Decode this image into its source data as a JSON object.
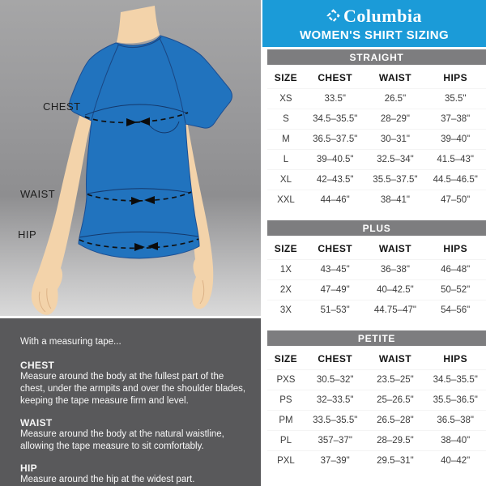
{
  "colors": {
    "header_blue": "#1B9BD8",
    "band_gray": "#7D7D7F",
    "instructions_bg": "#59595B",
    "shirt_blue": "#2173BE",
    "shirt_outline": "#1B4E93",
    "skin": "#F3D3AA",
    "figure_bg_top": "#A6A6A7",
    "figure_bg_bottom": "#DADADA"
  },
  "header": {
    "brand": "Columbia",
    "title": "WOMEN'S SHIRT SIZING"
  },
  "diagram": {
    "labels": {
      "chest": "CHEST",
      "waist": "WAIST",
      "hip": "HIP"
    }
  },
  "instructions": {
    "intro": "With a measuring tape...",
    "items": [
      {
        "title": "CHEST",
        "text": "Measure around the body at the fullest part of the chest, under the armpits and over the shoulder blades, keeping the tape measure firm and level."
      },
      {
        "title": "WAIST",
        "text": "Measure around the body at the natural waistline, allowing the tape measure to sit comfortably."
      },
      {
        "title": "HIP",
        "text": "Measure around the hip at the widest part."
      }
    ]
  },
  "tables": [
    {
      "name": "STRAIGHT",
      "columns": [
        "SIZE",
        "CHEST",
        "WAIST",
        "HIPS"
      ],
      "rows": [
        [
          "XS",
          "33.5\"",
          "26.5\"",
          "35.5\""
        ],
        [
          "S",
          "34.5–35.5\"",
          "28–29\"",
          "37–38\""
        ],
        [
          "M",
          "36.5–37.5\"",
          "30–31\"",
          "39–40\""
        ],
        [
          "L",
          "39–40.5\"",
          "32.5–34\"",
          "41.5–43\""
        ],
        [
          "XL",
          "42–43.5\"",
          "35.5–37.5\"",
          "44.5–46.5\""
        ],
        [
          "XXL",
          "44–46\"",
          "38–41\"",
          "47–50\""
        ]
      ]
    },
    {
      "name": "PLUS",
      "columns": [
        "SIZE",
        "CHEST",
        "WAIST",
        "HIPS"
      ],
      "rows": [
        [
          "1X",
          "43–45\"",
          "36–38\"",
          "46–48\""
        ],
        [
          "2X",
          "47–49\"",
          "40–42.5\"",
          "50–52\""
        ],
        [
          "3X",
          "51–53\"",
          "44.75–47\"",
          "54–56\""
        ]
      ]
    },
    {
      "name": "PETITE",
      "columns": [
        "SIZE",
        "CHEST",
        "WAIST",
        "HIPS"
      ],
      "rows": [
        [
          "PXS",
          "30.5–32\"",
          "23.5–25\"",
          "34.5–35.5\""
        ],
        [
          "PS",
          "32–33.5\"",
          "25–26.5\"",
          "35.5–36.5\""
        ],
        [
          "PM",
          "33.5–35.5\"",
          "26.5–28\"",
          "36.5–38\""
        ],
        [
          "PL",
          "357–37\"",
          "28–29.5\"",
          "38–40\""
        ],
        [
          "PXL",
          "37–39\"",
          "29.5–31\"",
          "40–42\""
        ]
      ]
    }
  ]
}
